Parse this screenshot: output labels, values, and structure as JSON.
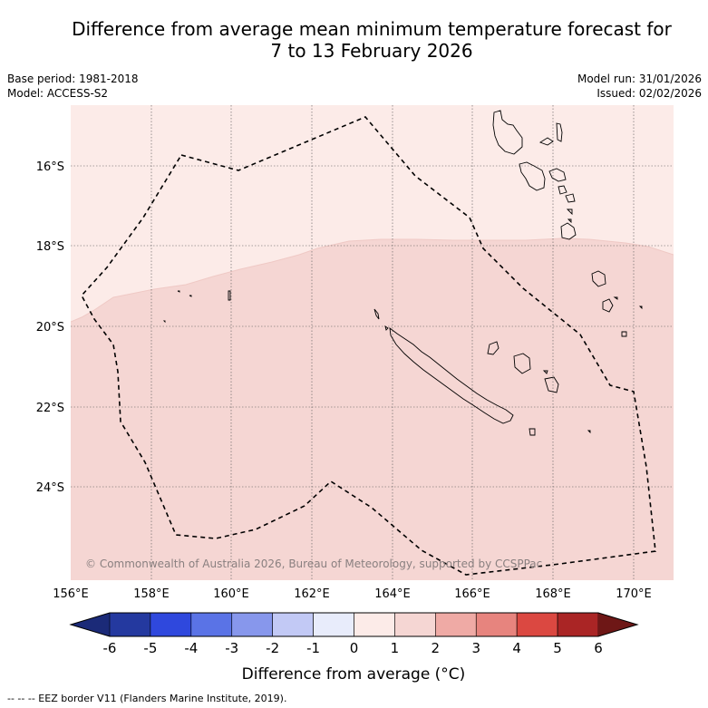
{
  "title": {
    "line1": "Difference from average mean minimum temperature forecast for",
    "line2": "7 to 13 February 2026"
  },
  "meta_left": {
    "base_period": "Base period: 1981-2018",
    "model": "Model: ACCESS-S2"
  },
  "meta_right": {
    "model_run": "Model run: 31/01/2026",
    "issued": "Issued: 02/02/2026"
  },
  "map": {
    "lon_range": [
      156,
      171
    ],
    "lat_range": [
      -26.2,
      -14.6
    ],
    "lon_ticks": [
      "156°E",
      "158°E",
      "160°E",
      "162°E",
      "164°E",
      "166°E",
      "168°E",
      "170°E"
    ],
    "lat_ticks": [
      "16°S",
      "18°S",
      "20°S",
      "22°S",
      "24°S"
    ],
    "copyright": "© Commonwealth of Australia 2026, Bureau of Meteorology, supported by CCSPPac",
    "anomaly_regions": [
      {
        "category": "0 to 1",
        "color": "#fcebe8"
      },
      {
        "category": "1 to 2",
        "color": "#f5d6d3"
      }
    ]
  },
  "colorbar": {
    "label": "Difference from average (°C)",
    "ticks": [
      "-6",
      "-5",
      "-4",
      "-3",
      "-2",
      "-1",
      "0",
      "1",
      "2",
      "3",
      "4",
      "5",
      "6"
    ],
    "under_color": "#1b2a78",
    "over_color": "#6e1716",
    "colors": [
      "#24399f",
      "#2f48dd",
      "#5a73e6",
      "#8797ec",
      "#c2c9f5",
      "#e8ecfb",
      "#fcebe8",
      "#f5d6d3",
      "#efaaa5",
      "#e7847e",
      "#db4841",
      "#aa2525"
    ]
  },
  "footer": {
    "legend_text": "-- -- -- EEZ border V11 (Flanders Marine Institute, 2019)."
  }
}
